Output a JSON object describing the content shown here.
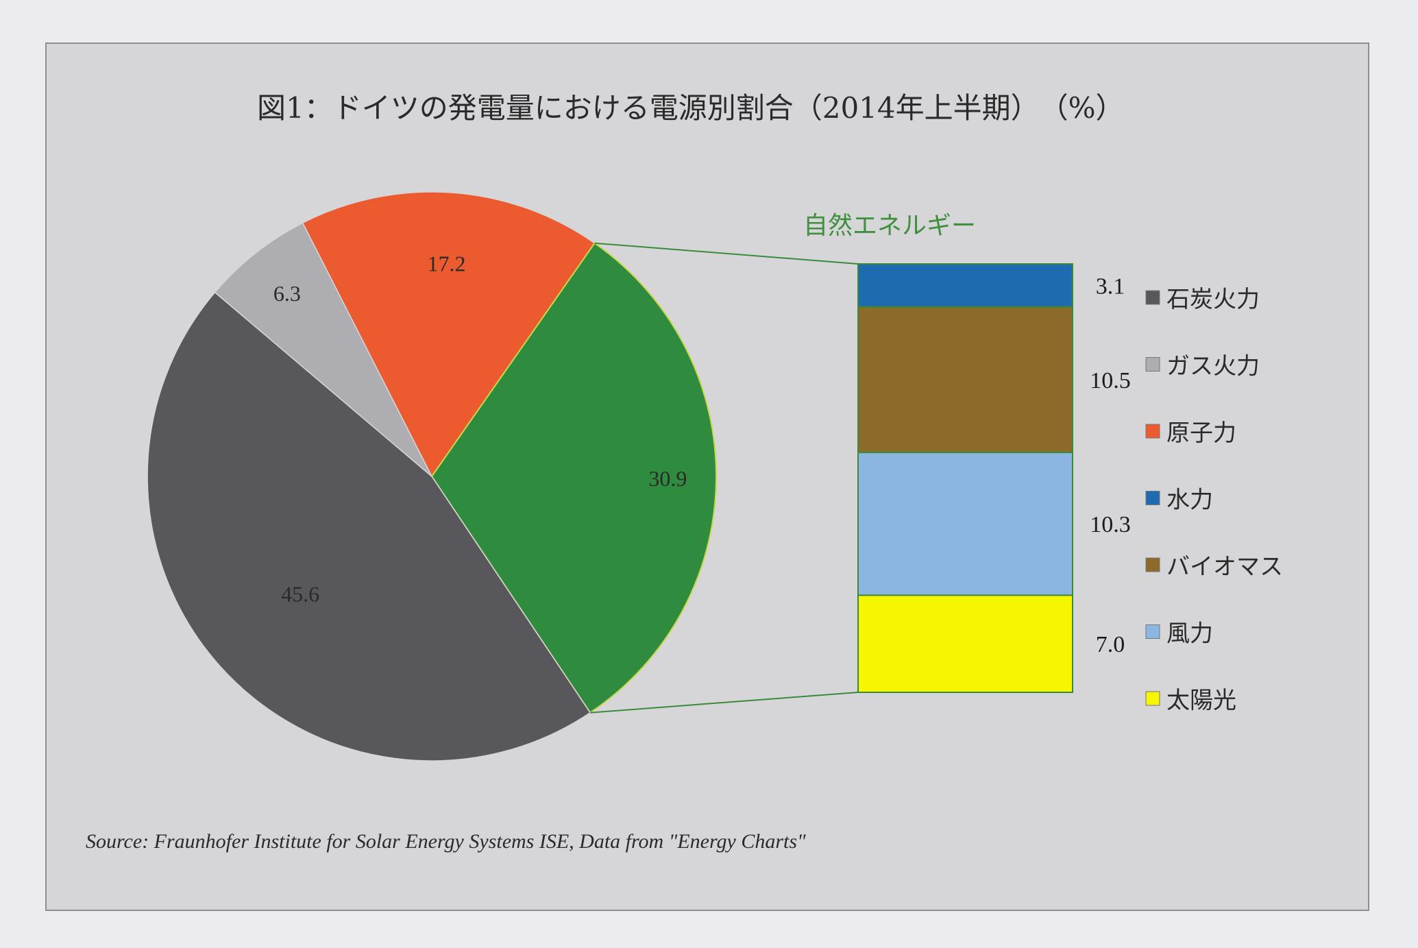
{
  "chart_data": {
    "type": "pie",
    "title": "図1：ドイツの発電量における電源別割合（2014年上半期）　（%）",
    "slices": [
      {
        "name": "石炭火力",
        "value": 45.6,
        "label": "45.6",
        "color": "#58575c"
      },
      {
        "name": "ガス火力",
        "value": 6.3,
        "label": "6.3",
        "color": "#adadb2"
      },
      {
        "name": "原子力",
        "value": 17.2,
        "label": "17.2",
        "color": "#ec5a2f"
      },
      {
        "name": "自然エネルギー",
        "value": 30.9,
        "label": "30.9",
        "color": "#2f8c3f"
      }
    ],
    "breakdown": {
      "title": "自然エネルギー",
      "type": "stacked-bar",
      "segments": [
        {
          "name": "水力",
          "value": 3.1,
          "label": "3.1",
          "color": "#1f6bb0"
        },
        {
          "name": "バイオマス",
          "value": 10.5,
          "label": "10.5",
          "color": "#8b6a2a"
        },
        {
          "name": "風力",
          "value": 10.3,
          "label": "10.3",
          "color": "#8ab6e1"
        },
        {
          "name": "太陽光",
          "value": 7.0,
          "label": "7.0",
          "color": "#f6f600"
        }
      ]
    },
    "legend": {
      "position": "right",
      "entries": [
        {
          "name": "石炭火力",
          "color": "#58575c"
        },
        {
          "name": "ガス火力",
          "color": "#adadb2"
        },
        {
          "name": "原子力",
          "color": "#ec5a2f"
        },
        {
          "name": "水力",
          "color": "#1f6bb0"
        },
        {
          "name": "バイオマス",
          "color": "#8b6a2a"
        },
        {
          "name": "風力",
          "color": "#8ab6e1"
        },
        {
          "name": "太陽光",
          "color": "#f6f600"
        }
      ]
    },
    "source": "Source: Fraunhofer Institute for Solar Energy Systems ISE, Data from \"Energy Charts\""
  }
}
